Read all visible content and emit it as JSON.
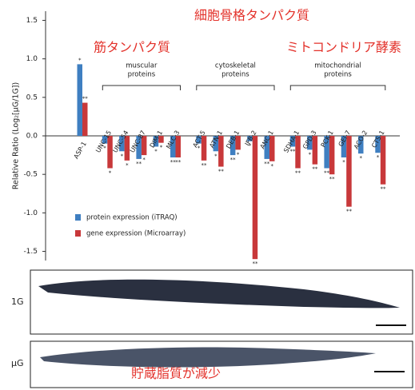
{
  "chart_data": {
    "type": "bar",
    "y_label": "Relative Ratio (Log₂[μG/1G])",
    "categories": [
      "ASP-1",
      "UNC-15",
      "UNC-54",
      "UNC-87",
      "DIM-1",
      "MLC-3",
      "ACT-5",
      "ATN-1",
      "DEB-1",
      "IFB-2",
      "ANC-1",
      "SDHA-1",
      "GPD-3",
      "PCK-1",
      "GEI-7",
      "ACO-2",
      "CTS-1"
    ],
    "series": [
      {
        "name": "protein expression (iTRAQ)",
        "color": "#3f7fc1",
        "values": [
          0.93,
          -0.1,
          -0.2,
          -0.3,
          -0.14,
          -0.28,
          -0.1,
          -0.2,
          -0.25,
          -0.07,
          -0.3,
          -0.14,
          -0.18,
          -0.42,
          -0.28,
          -0.23,
          -0.22
        ],
        "significance": [
          "*",
          "*",
          "*",
          "**",
          "*",
          "**",
          "*",
          "*",
          "**",
          "*",
          "**",
          "**",
          "*",
          "**",
          "*",
          "*",
          "*"
        ]
      },
      {
        "name": "gene expression (Microarray)",
        "color": "#c8383a",
        "values": [
          0.43,
          -0.42,
          -0.32,
          -0.25,
          -0.09,
          -0.28,
          -0.32,
          -0.4,
          -0.18,
          -1.6,
          -0.33,
          -0.42,
          -0.37,
          -0.5,
          -0.92,
          null,
          -0.63
        ],
        "significance": [
          "**",
          "*",
          "*",
          "*",
          "*",
          "**",
          "**",
          "**",
          "*",
          "**",
          "*",
          "**",
          "**",
          "**",
          "**",
          null,
          "**"
        ]
      }
    ],
    "ylim": [
      -1.65,
      1.65
    ],
    "yticks": [
      1.5,
      {
        "value": 1,
        "label": "1.0"
      },
      0.5,
      {
        "value": 0,
        "label": "0.0"
      },
      -0.5,
      {
        "value": -1,
        "label": "-1.0"
      },
      -1.5
    ],
    "groups": [
      [
        "muscular",
        "proteins"
      ],
      [
        "cytoskeletal",
        "proteins"
      ],
      [
        "mitochondrial",
        "proteins"
      ]
    ],
    "annotations": [
      "細胞骨格タンパク質",
      "筋タンパク質",
      "ミトコンドリア酵素"
    ]
  },
  "images": {
    "labels": [
      "1G",
      "μG"
    ],
    "annotation": "貯蔵脂質が減少"
  }
}
